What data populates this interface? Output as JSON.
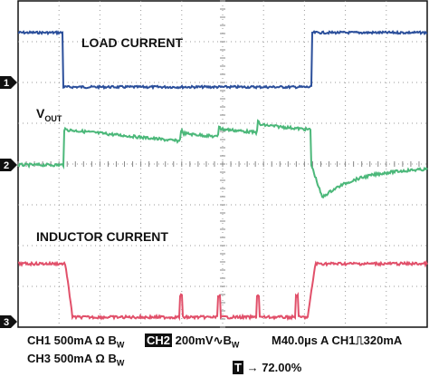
{
  "traces": {
    "load_current": "LOAD CURRENT",
    "vout": {
      "main": "V",
      "sub": "OUT"
    },
    "inductor_current": "INDUCTOR CURRENT"
  },
  "markers": [
    "1",
    "2",
    "3"
  ],
  "footer": {
    "ch1": {
      "text": "CH1 500mA Ω",
      "bw": "B",
      "bw_sub": "W"
    },
    "ch2": {
      "name": "CH2",
      "text": "200mV",
      "coupling": "∿",
      "bw": "B",
      "bw_sub": "W"
    },
    "timebase": {
      "text": "M40.0µs A CH1",
      "edge": "⎍",
      "level": "320mA"
    },
    "ch3": {
      "text": "CH3 500mA Ω",
      "bw": "B",
      "bw_sub": "W"
    },
    "trigger": {
      "name": "T",
      "text": "→ 72.00%"
    }
  }
}
